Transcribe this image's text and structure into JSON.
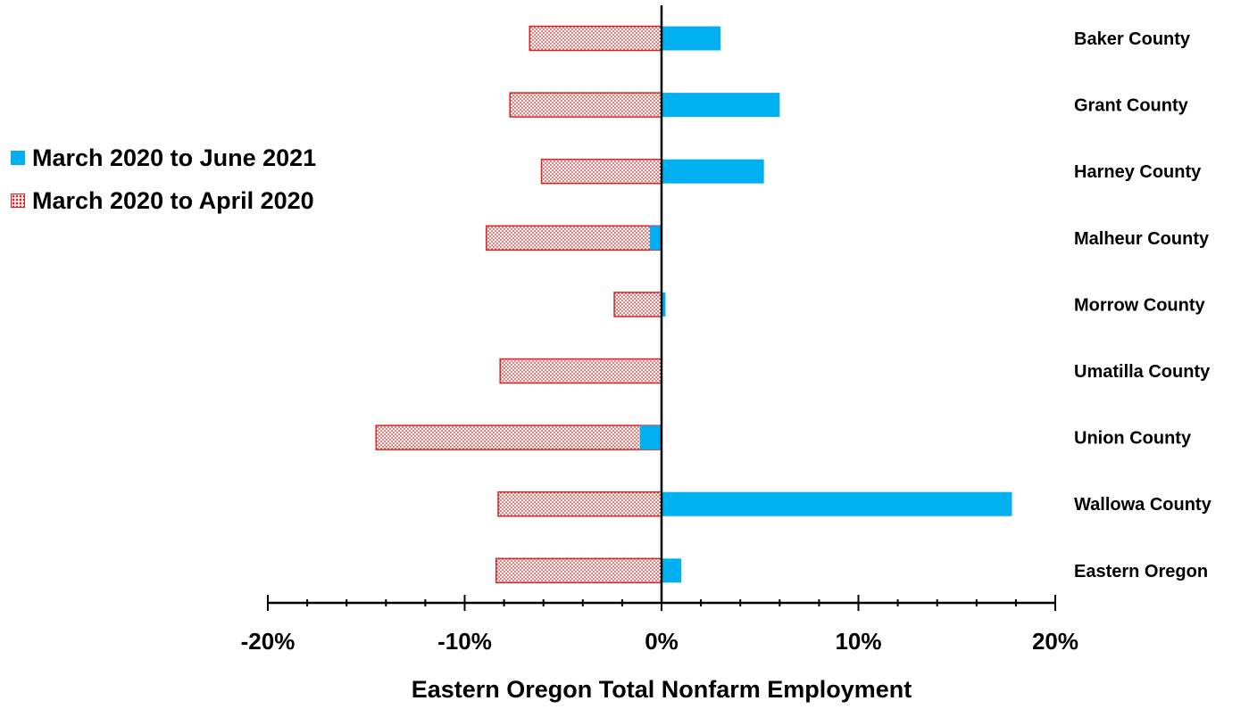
{
  "chart_data": {
    "type": "bar",
    "orientation": "horizontal",
    "title": "",
    "xlabel": "Eastern Oregon Total Nonfarm Employment",
    "ylabel": "",
    "xlim": [
      -20,
      20
    ],
    "xticks": [
      -20,
      -10,
      0,
      10,
      20
    ],
    "xtick_labels": [
      "-20%",
      "-10%",
      "0%",
      "10%",
      "20%"
    ],
    "grid": false,
    "legend_position": "left",
    "categories": [
      "Baker County",
      "Grant County",
      "Harney County",
      "Malheur County",
      "Morrow County",
      "Umatilla County",
      "Union County",
      "Wallowa County",
      "Eastern Oregon"
    ],
    "series": [
      {
        "name": "March 2020 to June 2021",
        "color": "#00b0f0",
        "pattern": "solid",
        "values": [
          3.0,
          6.0,
          5.2,
          -0.6,
          0.2,
          0.0,
          -1.1,
          17.8,
          1.0
        ]
      },
      {
        "name": "March 2020 to April 2020",
        "color": "#e02020",
        "pattern": "dotted",
        "values": [
          -6.7,
          -7.7,
          -6.1,
          -8.9,
          -2.4,
          -8.2,
          -14.5,
          -8.3,
          -8.4
        ]
      }
    ]
  }
}
